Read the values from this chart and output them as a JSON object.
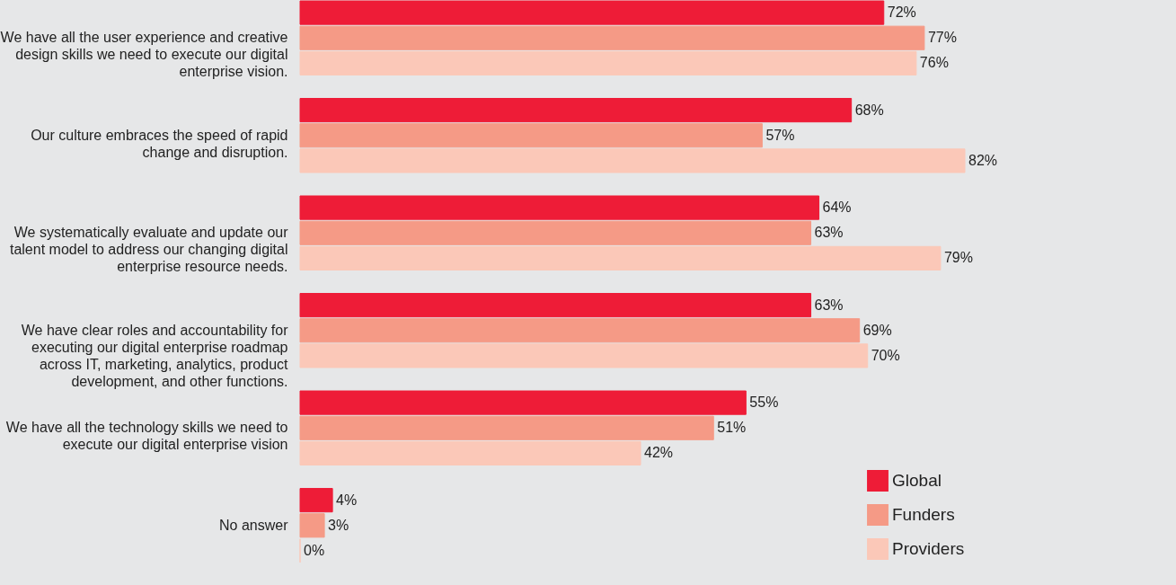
{
  "chart_data": {
    "type": "bar",
    "orientation": "horizontal",
    "legend": "bottom right",
    "categories": [
      "We have all the user experience and creative design skills we need to execute our digital enterprise vision.",
      "Our culture embraces the speed of rapid change and disruption.",
      "We systematically evaluate and update our talent model to address our changing digital enterprise resource needs.",
      "We have clear roles and accountability for executing our digital enterprise roadmap across IT, marketing, analytics, product development, and other functions.",
      "We have all the technology skills we need to execute our digital enterprise vision",
      "No answer"
    ],
    "series": [
      {
        "name": "Global",
        "color": "#ee1c37",
        "values": [
          72,
          68,
          64,
          63,
          55,
          4
        ],
        "value_labels": [
          "72%",
          "68%",
          "64%",
          "63%",
          "55%",
          "4%"
        ]
      },
      {
        "name": "Funders",
        "color": "#f59a86",
        "values": [
          77,
          57,
          63,
          69,
          51,
          3
        ],
        "value_labels": [
          "77%",
          "57%",
          "63%",
          "69%",
          "51%",
          "3%"
        ]
      },
      {
        "name": "Providers",
        "color": "#fbc8b8",
        "values": [
          76,
          82,
          79,
          70,
          42,
          0
        ],
        "value_labels": [
          "76%",
          "82%",
          "79%",
          "70%",
          "42%",
          "0%"
        ]
      }
    ]
  }
}
